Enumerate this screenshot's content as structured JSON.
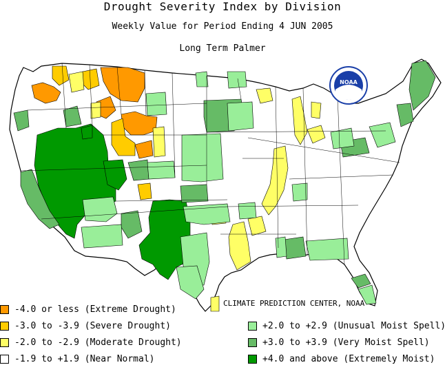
{
  "header": {
    "title": "Drought Severity Index by Division",
    "subtitle": "Weekly Value for Period Ending  4 JUN 2005",
    "index_name": "Long Term Palmer"
  },
  "credit": "CLIMATE PREDICTION CENTER, NOAA",
  "logo": {
    "text": "NOAA",
    "icon": "noaa-logo-icon"
  },
  "colors": {
    "extreme_drought": "#ff9900",
    "severe_drought": "#ffcc00",
    "moderate_drought": "#ffff66",
    "near_normal": "#ffffff",
    "unusual_moist": "#99ee99",
    "very_moist": "#66bb66",
    "extremely_moist": "#009900",
    "noaa_blue": "#1a3fa8"
  },
  "legend": {
    "left": [
      {
        "label": "-4.0 or less (Extreme Drought)",
        "color": "#ff9900"
      },
      {
        "label": "-3.0 to -3.9 (Severe Drought)",
        "color": "#ffcc00"
      },
      {
        "label": "-2.0 to -2.9 (Moderate Drought)",
        "color": "#ffff66"
      },
      {
        "label": "-1.9 to +1.9 (Near Normal)",
        "color": "#ffffff"
      }
    ],
    "right": [
      {
        "label": "+2.0 to +2.9 (Unusual Moist Spell)",
        "color": "#99ee99"
      },
      {
        "label": "+3.0 to +3.9 (Very Moist Spell)",
        "color": "#66bb66"
      },
      {
        "label": "+4.0 and above (Extremely Moist)",
        "color": "#009900"
      }
    ]
  }
}
